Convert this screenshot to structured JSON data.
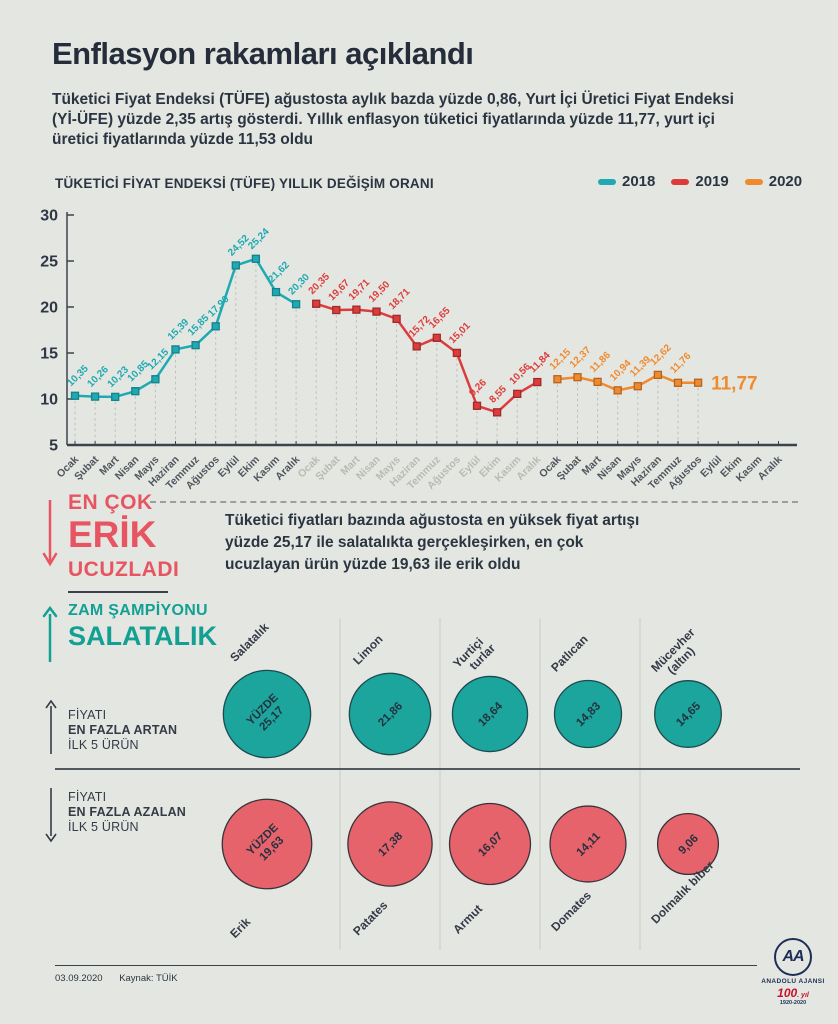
{
  "header": {
    "title": "Enflasyon rakamları açıklandı",
    "intro": "Tüketici Fiyat Endeksi (TÜFE) ağustosta aylık bazda yüzde 0,86, Yurt İçi Üretici Fiyat Endeksi (Yİ-ÜFE) yüzde 2,35 artış gösterdi. Yıllık enflasyon tüketici fiyatlarında yüzde 11,77, yurt içi üretici fiyatlarında yüzde 11,53 oldu"
  },
  "chart_data": [
    {
      "type": "line",
      "title": "TÜKETİCİ FİYAT ENDEKSİ (TÜFE) YILLIK DEĞİŞİM ORANI",
      "months": [
        "Ocak",
        "Şubat",
        "Mart",
        "Nisan",
        "Mayıs",
        "Haziran",
        "Temmuz",
        "Ağustos",
        "Eylül",
        "Ekim",
        "Kasım",
        "Aralık"
      ],
      "ylim": [
        5,
        30
      ],
      "yticks": [
        30,
        25,
        20,
        15,
        10,
        5
      ],
      "grid": "dashed vertical droplines per point",
      "legend_position": "top-right",
      "x_label_colors": [
        "#50565e",
        "#b7bbb3",
        "#50565e"
      ],
      "series": [
        {
          "name": "2018",
          "color": "#1fa9b2",
          "marker_border": "#15818a",
          "values": [
            10.35,
            10.26,
            10.23,
            10.85,
            12.15,
            15.39,
            15.85,
            17.9,
            24.52,
            25.24,
            21.62,
            20.3
          ],
          "labels": [
            "10,35",
            "10,26",
            "10,23",
            "10,85",
            "12,15",
            "15,39",
            "15,85",
            "17,90",
            "24,52",
            "25,24",
            "21,62",
            "20,30"
          ]
        },
        {
          "name": "2019",
          "color": "#dd3c3c",
          "marker_border": "#9e2b2b",
          "values": [
            20.35,
            19.67,
            19.71,
            19.5,
            18.71,
            15.72,
            16.65,
            15.01,
            9.26,
            8.55,
            10.56,
            11.84
          ],
          "labels": [
            "20,35",
            "19,67",
            "19,71",
            "19,50",
            "18,71",
            "15,72",
            "16,65",
            "15,01",
            "9,26",
            "8,55",
            "10,56",
            "11,84"
          ]
        },
        {
          "name": "2020",
          "color": "#f08a2e",
          "marker_border": "#b56420",
          "values": [
            12.15,
            12.37,
            11.86,
            10.94,
            11.39,
            12.62,
            11.76,
            11.77
          ],
          "labels": [
            "12,15",
            "12,37",
            "11,86",
            "10,94",
            "11,39",
            "12,62",
            "11,76",
            ""
          ],
          "highlight_label": "11,77"
        }
      ]
    },
    {
      "type": "bubble",
      "group": "fiyati-en-fazla-artan",
      "color": "#1ba59c",
      "border": "#1c4a4f",
      "items": [
        {
          "label_lines": [
            "Salatalık"
          ],
          "value": 25.17,
          "value_lines": [
            "YÜZDE",
            "25,17"
          ]
        },
        {
          "label_lines": [
            "Limon"
          ],
          "value": 21.86,
          "value_lines": [
            "21,86"
          ]
        },
        {
          "label_lines": [
            "Yurtiçi",
            "turlar"
          ],
          "value": 18.64,
          "value_lines": [
            "18,64"
          ]
        },
        {
          "label_lines": [
            "Patlıcan"
          ],
          "value": 14.83,
          "value_lines": [
            "14,83"
          ]
        },
        {
          "label_lines": [
            "Mücevher",
            "(altın)"
          ],
          "value": 14.65,
          "value_lines": [
            "14,65"
          ]
        }
      ]
    },
    {
      "type": "bubble",
      "group": "fiyati-en-fazla-azalan",
      "color": "#e7636c",
      "border": "#38333b",
      "items": [
        {
          "label_lines": [
            "Erik"
          ],
          "value": 19.63,
          "value_lines": [
            "YÜZDE",
            "19,63"
          ]
        },
        {
          "label_lines": [
            "Patates"
          ],
          "value": 17.38,
          "value_lines": [
            "17,38"
          ]
        },
        {
          "label_lines": [
            "Armut"
          ],
          "value": 16.07,
          "value_lines": [
            "16,07"
          ]
        },
        {
          "label_lines": [
            "Domates"
          ],
          "value": 14.11,
          "value_lines": [
            "14,11"
          ]
        },
        {
          "label_lines": [
            "Dolmalık biber"
          ],
          "value": 9.06,
          "value_lines": [
            "9,06"
          ]
        }
      ]
    }
  ],
  "highlight": {
    "down_line1": "EN ÇOK",
    "down_line2": "ERİK",
    "down_line3": "UCUZLADI",
    "body": "Tüketici fiyatları bazında ağustosta en yüksek fiyat artışı yüzde 25,17 ile salatalıkta gerçekleşirken, en çok ucuzlayan ürün yüzde 19,63 ile erik oldu",
    "up_title": "ZAM ŞAMPİYONU",
    "up_name": "SALATALIK",
    "accent_red": "#e85562",
    "accent_teal": "#13a093"
  },
  "bubble_sections": {
    "top_l1": "FİYATI",
    "top_l2": "EN FAZLA ARTAN",
    "top_l3": "İLK 5 ÜRÜN",
    "bottom_l1": "FİYATI",
    "bottom_l2": "EN FAZLA AZALAN",
    "bottom_l3": "İLK 5 ÜRÜN"
  },
  "footer": {
    "date": "03.09.2020",
    "source": "Kaynak: TÜİK",
    "logo": {
      "monogram": "AA",
      "name": "ANADOLU AJANSI",
      "centennial_number": "100",
      "centennial_suffix": ". yıl",
      "years": "1920-2020"
    }
  }
}
